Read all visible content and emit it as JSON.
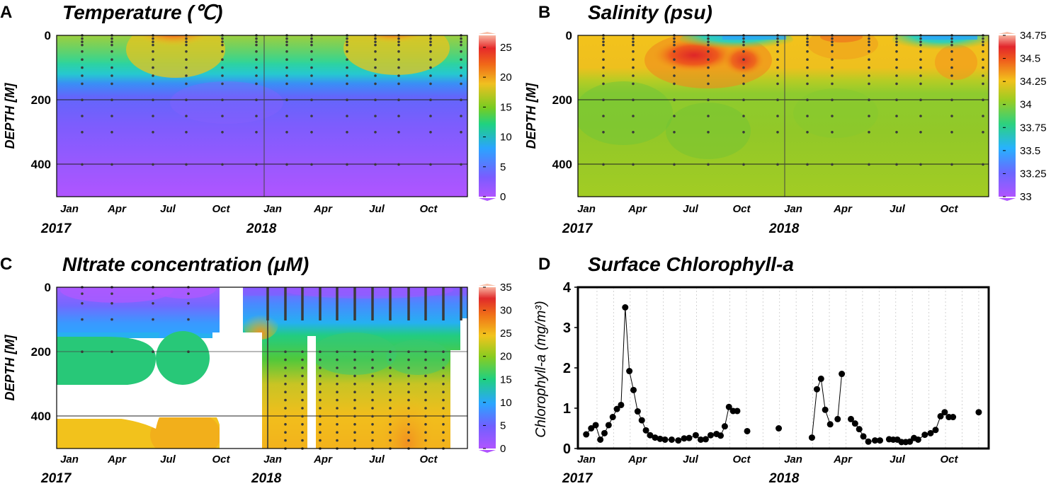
{
  "depth_label": "DEPTH [M]",
  "years": [
    "2017",
    "2018"
  ],
  "colors": {
    "axis": "#000000",
    "station_dot": "#3a3a3a",
    "chl_point": "#000000"
  },
  "panels": {
    "A": {
      "letter": "A",
      "title": "Temperature (℃)",
      "ylim": [
        0,
        500
      ],
      "yticks": [
        "0",
        "200",
        "400"
      ],
      "xticks": [
        "Jan",
        "Apr",
        "Jul",
        "Oct",
        "Jan",
        "Apr",
        "Jul",
        "Oct"
      ],
      "colorbar": {
        "min": 0,
        "max": 27,
        "ticks": [
          "25",
          "20",
          "15",
          "10",
          "5",
          "0"
        ]
      }
    },
    "B": {
      "letter": "B",
      "title": "Salinity (psu)",
      "ylim": [
        0,
        500
      ],
      "yticks": [
        "0",
        "200",
        "400"
      ],
      "xticks": [
        "Jan",
        "Apr",
        "Jul",
        "Oct",
        "Jan",
        "Apr",
        "Jul",
        "Oct"
      ],
      "colorbar": {
        "min": 33,
        "max": 34.75,
        "ticks": [
          "34.75",
          "34.5",
          "34.25",
          "34",
          "33.75",
          "33.5",
          "33.25",
          "33"
        ]
      }
    },
    "C": {
      "letter": "C",
      "title": "NItrate concentration (μM)",
      "ylim": [
        0,
        500
      ],
      "yticks": [
        "0",
        "200",
        "400"
      ],
      "xticks": [
        "Jan",
        "Apr",
        "Jul",
        "Oct",
        "Jan",
        "Apr",
        "Jul",
        "Oct"
      ],
      "colorbar": {
        "min": 0,
        "max": 35,
        "ticks": [
          "35",
          "30",
          "25",
          "20",
          "15",
          "10",
          "5",
          "0"
        ]
      }
    },
    "D": {
      "letter": "D",
      "title": "Surface Chlorophyll-a",
      "ylabel": "Chlorophyll-a (mg/m³)",
      "yticks": [
        "0",
        "1",
        "2",
        "3",
        "4"
      ],
      "xticks": [
        "Jan",
        "Apr",
        "Jul",
        "Oct",
        "Jan",
        "Apr",
        "Jul",
        "Oct"
      ]
    }
  },
  "chart_data": [
    {
      "type": "heatmap",
      "title": "Temperature (℃)",
      "ylabel": "DEPTH [M]",
      "x_range": [
        "2017-01",
        "2018-12"
      ],
      "ylim": [
        0,
        500
      ],
      "y_inverted": true,
      "colorbar_range": [
        0,
        27
      ],
      "summary": "Warm surface layer (20-26 °C) in Jul-Sep each year; thermocline near 100-150 m; deep water 2-5 °C"
    },
    {
      "type": "heatmap",
      "title": "Salinity (psu)",
      "ylabel": "DEPTH [M]",
      "x_range": [
        "2017-01",
        "2018-12"
      ],
      "ylim": [
        0,
        500
      ],
      "y_inverted": true,
      "colorbar_range": [
        33,
        34.75
      ],
      "summary": "High-salinity core (34.4-34.6) at 30-100 m in Jun-Sep 2017; fresher surface layer (33.3) in late summer; 33.9-34.0 below 200 m"
    },
    {
      "type": "heatmap",
      "title": "NItrate concentration (μM)",
      "ylabel": "DEPTH [M]",
      "x_range": [
        "2017-01",
        "2018-12"
      ],
      "ylim": [
        0,
        500
      ],
      "y_inverted": true,
      "colorbar_range": [
        0,
        35
      ],
      "summary": "Low nitrate (0-5 μM) at surface; 17-20 μM near 200 m; 22-27 μM at 400-500 m; gaps where no samples"
    },
    {
      "type": "scatter",
      "title": "Surface Chlorophyll-a",
      "ylabel": "Chlorophyll-a (mg/m³)",
      "ylim": [
        0,
        4
      ],
      "x_unit": "months since Jan 2017",
      "series": [
        {
          "name": "line-segment-1",
          "connected": true,
          "x": [
            0.35,
            0.65,
            0.92,
            1.2,
            1.45,
            1.7,
            1.95,
            2.2,
            2.45,
            2.7,
            2.95,
            3.2,
            3.45,
            3.7,
            3.95,
            4.2,
            4.5,
            4.8,
            5.1,
            5.5,
            5.9,
            6.25,
            6.55,
            6.95,
            7.25,
            7.55,
            7.85
          ],
          "y": [
            0.35,
            0.5,
            0.58,
            0.22,
            0.38,
            0.58,
            0.78,
            0.98,
            1.08,
            3.5,
            1.92,
            1.45,
            0.92,
            0.7,
            0.45,
            0.33,
            0.27,
            0.24,
            0.22,
            0.22,
            0.2,
            0.25,
            0.26,
            0.33,
            0.22,
            0.23,
            0.33
          ]
        },
        {
          "name": "line-segment-2",
          "connected": true,
          "x": [
            8.2,
            8.45,
            8.7,
            8.95,
            9.2,
            9.45
          ],
          "y": [
            0.36,
            0.32,
            0.55,
            1.03,
            0.93,
            0.93
          ]
        },
        {
          "name": "isolated-points-a",
          "connected": false,
          "x": [
            10.05,
            11.95
          ],
          "y": [
            0.43,
            0.5
          ]
        },
        {
          "name": "line-segment-3",
          "connected": true,
          "x": [
            13.95,
            14.25,
            14.5,
            14.75,
            15.05
          ],
          "y": [
            0.27,
            1.47,
            1.73,
            0.96,
            0.6
          ]
        },
        {
          "name": "line-segment-4",
          "connected": true,
          "x": [
            15.5,
            15.75
          ],
          "y": [
            0.73,
            1.85
          ]
        },
        {
          "name": "line-segment-5",
          "connected": true,
          "x": [
            16.3,
            16.55,
            16.8,
            17.05,
            17.35,
            17.75,
            18.05
          ],
          "y": [
            0.73,
            0.62,
            0.48,
            0.3,
            0.17,
            0.2,
            0.2
          ]
        },
        {
          "name": "line-segment-6",
          "connected": true,
          "x": [
            18.6,
            18.85,
            19.1,
            19.35,
            19.6,
            19.85,
            20.1,
            20.35,
            20.75,
            21.1,
            21.4,
            21.7,
            21.95,
            22.2,
            22.45
          ],
          "y": [
            0.23,
            0.22,
            0.22,
            0.16,
            0.16,
            0.17,
            0.26,
            0.22,
            0.34,
            0.38,
            0.46,
            0.8,
            0.9,
            0.78,
            0.78
          ]
        },
        {
          "name": "isolated-points-b",
          "connected": false,
          "x": [
            24.0
          ],
          "y": [
            0.9
          ]
        }
      ]
    }
  ]
}
